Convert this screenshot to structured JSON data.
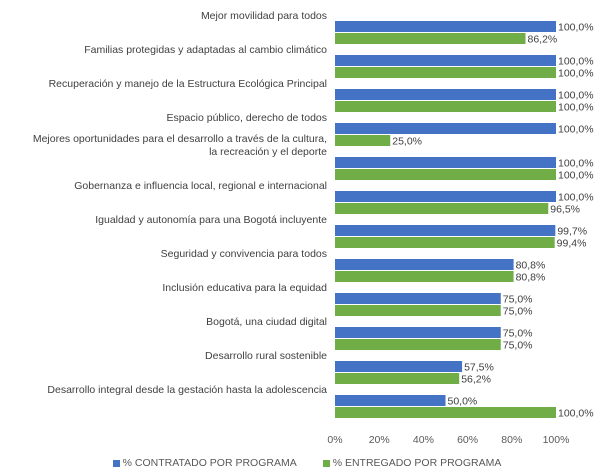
{
  "chart_data": {
    "type": "bar",
    "orientation": "horizontal",
    "categories": [
      [
        "Mejor movilidad para todos"
      ],
      [
        "Familias protegidas y adaptadas al cambio climático"
      ],
      [
        "Recuperación y manejo de la Estructura Ecológica Principal"
      ],
      [
        "Espacio público, derecho de todos"
      ],
      [
        "Mejores oportunidades para el desarrollo a través de la cultura,",
        "la recreación y el deporte"
      ],
      [
        "Gobernanza e influencia local, regional e internacional"
      ],
      [
        "Igualdad y autonomía para una Bogotá incluyente"
      ],
      [
        "Seguridad y convivencia para todos"
      ],
      [
        "Inclusión educativa para la equidad"
      ],
      [
        "Bogotá, una ciudad digital"
      ],
      [
        "Desarrollo rural sostenible"
      ],
      [
        "Desarrollo integral desde la gestación hasta la adolescencia"
      ]
    ],
    "series": [
      {
        "name": "% CONTRATADO POR PROGRAMA",
        "color": "#4472C4",
        "values": [
          100,
          100,
          100,
          100,
          100,
          100,
          99.7,
          80.8,
          75,
          75,
          57.5,
          50
        ],
        "labels": [
          "100,0%",
          "100,0%",
          "100,0%",
          "100,0%",
          "100,0%",
          "100,0%",
          "99,7%",
          "80,8%",
          "75,0%",
          "75,0%",
          "57,5%",
          "50,0%"
        ]
      },
      {
        "name": "% ENTREGADO POR PROGRAMA",
        "color": "#70AD47",
        "values": [
          86.2,
          100,
          100,
          25,
          100,
          96.5,
          99.4,
          80.8,
          75,
          75,
          56.2,
          100
        ],
        "labels": [
          "86,2%",
          "100,0%",
          "100,0%",
          "25,0%",
          "100,0%",
          "96,5%",
          "99,4%",
          "80,8%",
          "75,0%",
          "75,0%",
          "56,2%",
          "100,0%"
        ]
      }
    ],
    "xlim": [
      0,
      100
    ],
    "xticks": [
      0,
      20,
      40,
      60,
      80,
      100
    ],
    "xtick_labels": [
      "0%",
      "20%",
      "40%",
      "60%",
      "80%",
      "100%"
    ],
    "legend_position": "bottom",
    "grid": false
  }
}
